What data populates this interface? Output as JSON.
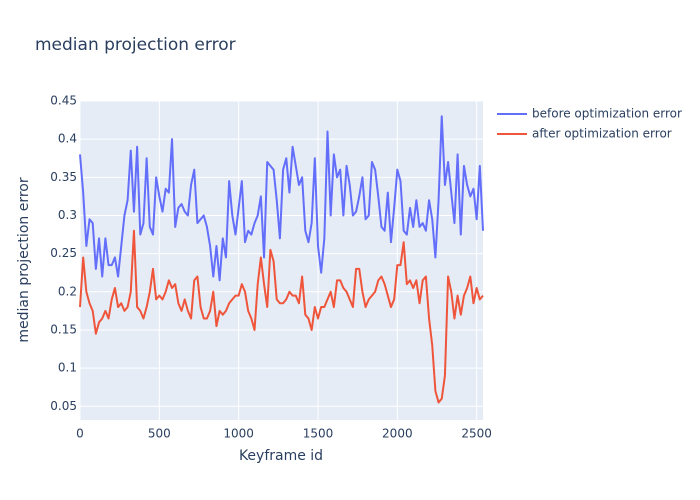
{
  "chart_data": {
    "type": "line",
    "title": "median projection error",
    "x_label": "Keyframe id",
    "y_label": "median projection error",
    "x": [
      0,
      20,
      40,
      60,
      80,
      100,
      120,
      140,
      160,
      180,
      200,
      220,
      240,
      260,
      280,
      300,
      320,
      340,
      360,
      380,
      400,
      420,
      440,
      460,
      480,
      500,
      520,
      540,
      560,
      580,
      600,
      620,
      640,
      660,
      680,
      700,
      720,
      740,
      760,
      780,
      800,
      820,
      840,
      860,
      880,
      900,
      920,
      940,
      960,
      980,
      1000,
      1020,
      1040,
      1060,
      1080,
      1100,
      1120,
      1140,
      1160,
      1180,
      1200,
      1220,
      1240,
      1260,
      1280,
      1300,
      1320,
      1340,
      1360,
      1380,
      1400,
      1420,
      1440,
      1460,
      1480,
      1500,
      1520,
      1540,
      1560,
      1580,
      1600,
      1620,
      1640,
      1660,
      1680,
      1700,
      1720,
      1740,
      1760,
      1780,
      1800,
      1820,
      1840,
      1860,
      1880,
      1900,
      1920,
      1940,
      1960,
      1980,
      2000,
      2020,
      2040,
      2060,
      2080,
      2100,
      2120,
      2140,
      2160,
      2180,
      2200,
      2220,
      2240,
      2260,
      2280,
      2300,
      2320,
      2340,
      2360,
      2380,
      2400,
      2420,
      2440,
      2460,
      2480,
      2500,
      2520,
      2540
    ],
    "series": [
      {
        "name": "before optimization error",
        "color": "#636efa",
        "values": [
          0.38,
          0.33,
          0.26,
          0.295,
          0.29,
          0.23,
          0.27,
          0.22,
          0.27,
          0.235,
          0.235,
          0.245,
          0.22,
          0.26,
          0.3,
          0.32,
          0.385,
          0.305,
          0.39,
          0.275,
          0.29,
          0.375,
          0.285,
          0.275,
          0.35,
          0.325,
          0.305,
          0.335,
          0.33,
          0.4,
          0.285,
          0.31,
          0.315,
          0.305,
          0.3,
          0.34,
          0.36,
          0.29,
          0.295,
          0.3,
          0.285,
          0.26,
          0.22,
          0.26,
          0.215,
          0.27,
          0.245,
          0.345,
          0.3,
          0.275,
          0.31,
          0.345,
          0.265,
          0.28,
          0.275,
          0.29,
          0.3,
          0.325,
          0.245,
          0.37,
          0.365,
          0.36,
          0.32,
          0.27,
          0.36,
          0.375,
          0.33,
          0.39,
          0.365,
          0.34,
          0.35,
          0.28,
          0.265,
          0.29,
          0.375,
          0.26,
          0.225,
          0.27,
          0.41,
          0.3,
          0.38,
          0.35,
          0.36,
          0.3,
          0.365,
          0.34,
          0.3,
          0.305,
          0.325,
          0.35,
          0.295,
          0.3,
          0.37,
          0.36,
          0.325,
          0.285,
          0.28,
          0.33,
          0.265,
          0.31,
          0.36,
          0.345,
          0.28,
          0.275,
          0.31,
          0.285,
          0.32,
          0.285,
          0.29,
          0.28,
          0.32,
          0.295,
          0.245,
          0.32,
          0.43,
          0.34,
          0.37,
          0.33,
          0.29,
          0.38,
          0.275,
          0.365,
          0.34,
          0.325,
          0.335,
          0.295,
          0.365,
          0.28
        ]
      },
      {
        "name": "after optimization error",
        "color": "#ef553b",
        "values": [
          0.18,
          0.245,
          0.2,
          0.185,
          0.175,
          0.145,
          0.16,
          0.165,
          0.175,
          0.165,
          0.19,
          0.205,
          0.18,
          0.185,
          0.175,
          0.18,
          0.2,
          0.28,
          0.18,
          0.175,
          0.165,
          0.18,
          0.2,
          0.23,
          0.19,
          0.195,
          0.19,
          0.2,
          0.215,
          0.205,
          0.21,
          0.185,
          0.175,
          0.19,
          0.175,
          0.165,
          0.215,
          0.22,
          0.18,
          0.165,
          0.165,
          0.175,
          0.2,
          0.155,
          0.175,
          0.17,
          0.175,
          0.185,
          0.19,
          0.195,
          0.195,
          0.21,
          0.2,
          0.175,
          0.165,
          0.15,
          0.21,
          0.245,
          0.21,
          0.18,
          0.255,
          0.24,
          0.19,
          0.185,
          0.185,
          0.19,
          0.2,
          0.195,
          0.195,
          0.185,
          0.22,
          0.17,
          0.165,
          0.15,
          0.18,
          0.165,
          0.18,
          0.18,
          0.19,
          0.2,
          0.18,
          0.215,
          0.215,
          0.205,
          0.2,
          0.19,
          0.18,
          0.23,
          0.23,
          0.2,
          0.18,
          0.19,
          0.195,
          0.2,
          0.215,
          0.22,
          0.21,
          0.195,
          0.18,
          0.19,
          0.235,
          0.235,
          0.265,
          0.21,
          0.215,
          0.205,
          0.215,
          0.185,
          0.215,
          0.22,
          0.165,
          0.13,
          0.07,
          0.055,
          0.06,
          0.09,
          0.22,
          0.2,
          0.165,
          0.195,
          0.17,
          0.195,
          0.205,
          0.22,
          0.185,
          0.205,
          0.19,
          0.195
        ]
      }
    ],
    "xlim": [
      0,
      2540
    ],
    "ylim": [
      0.032,
      0.45
    ],
    "xticks": [
      0,
      500,
      1000,
      1500,
      2000,
      2500
    ],
    "yticks": [
      0.05,
      0.1,
      0.15,
      0.2,
      0.25,
      0.3,
      0.35,
      0.4,
      0.45
    ],
    "grid": true,
    "legend": "top-right"
  }
}
